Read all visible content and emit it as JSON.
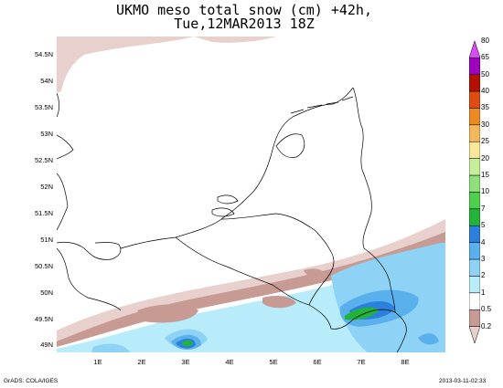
{
  "title": {
    "line1": "UKMO meso total snow (cm) +42h,",
    "line2": "Tue,12MAR2013 18Z"
  },
  "map": {
    "lat_labels": [
      "54.5N",
      "54N",
      "53.5N",
      "53N",
      "52.5N",
      "52N",
      "51.5N",
      "51N",
      "50.5N",
      "50N",
      "49.5N",
      "49N"
    ],
    "lon_labels": [
      "1E",
      "2E",
      "3E",
      "4E",
      "5E",
      "6E",
      "7E",
      "8E"
    ]
  },
  "colorbar": {
    "labels": [
      "0.2",
      "0.5",
      "1",
      "2",
      "3",
      "4",
      "5",
      "7",
      "10",
      "15",
      "20",
      "25",
      "30",
      "35",
      "40",
      "50",
      "65",
      "80"
    ],
    "colors": [
      "#e8d0cc",
      "#c89a94",
      "#ffffff",
      "#b8ecfa",
      "#8ed2f5",
      "#5ab0ec",
      "#2a80dc",
      "#22b43a",
      "#4cd04c",
      "#8ee07c",
      "#c4ee9a",
      "#fbe79a",
      "#f4b75e",
      "#ec8a22",
      "#e04b10",
      "#b41000",
      "#9e00c0",
      "#d64ef2"
    ]
  },
  "footer": {
    "left": "GrADS: COLA/IGES",
    "right": "2013-03-11-02:33"
  }
}
